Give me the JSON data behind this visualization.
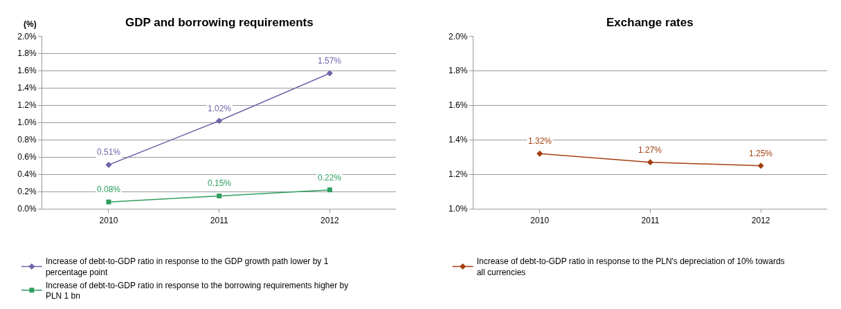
{
  "chart_data": [
    {
      "type": "line",
      "title": "GDP and borrowing requirements",
      "ylabel": "(%)",
      "categories": [
        "2010",
        "2011",
        "2012"
      ],
      "series": [
        {
          "name": "Increase of debt-to-GDP ratio in response to the GDP growth path lower by 1 percentage point",
          "color": "#7264aa",
          "values": [
            0.51,
            1.02,
            1.57
          ],
          "value_labels": [
            "0.51%",
            "1.02%",
            "1.57%"
          ],
          "marker": "diamond"
        },
        {
          "name": "Increase of debt-to-GDP ratio in response to the borrowing requirements higher by PLN 1 bn",
          "color": "#2f9e60",
          "values": [
            0.08,
            0.15,
            0.22
          ],
          "value_labels": [
            "0.08%",
            "0.15%",
            "0.22%"
          ],
          "marker": "square"
        }
      ],
      "ylim": [
        0,
        2
      ],
      "yticks": [
        {
          "value": 0,
          "label": "0.0%"
        },
        {
          "value": 0.2,
          "label": "0.2%"
        },
        {
          "value": 0.4,
          "label": "0.4%"
        },
        {
          "value": 0.6,
          "label": "0.6%"
        },
        {
          "value": 0.8,
          "label": "0.8%"
        },
        {
          "value": 1.0,
          "label": "1.0%"
        },
        {
          "value": 1.2,
          "label": "1.2%"
        },
        {
          "value": 1.4,
          "label": "1.4%"
        },
        {
          "value": 1.6,
          "label": "1.6%"
        },
        {
          "value": 1.8,
          "label": "1.8%"
        },
        {
          "value": 2.0,
          "label": "2.0%"
        }
      ],
      "grid": "y",
      "legend": "bottom",
      "line_style": "solid"
    },
    {
      "type": "line",
      "title": "Exchange rates",
      "categories": [
        "2010",
        "2011",
        "2012"
      ],
      "series": [
        {
          "name": "Increase of debt-to-GDP ratio in response to the PLN's depreciation of 10% towards all currencies",
          "color": "#a23f10",
          "values": [
            1.32,
            1.27,
            1.25
          ],
          "value_labels": [
            "1.32%",
            "1.27%",
            "1.25%"
          ],
          "marker": "diamond"
        }
      ],
      "ylim": [
        1,
        2
      ],
      "yticks": [
        {
          "value": 1.0,
          "label": "1.0%"
        },
        {
          "value": 1.2,
          "label": "1.2%"
        },
        {
          "value": 1.4,
          "label": "1.4%"
        },
        {
          "value": 1.6,
          "label": "1.6%"
        },
        {
          "value": 1.8,
          "label": "1.8%"
        },
        {
          "value": 2.0,
          "label": "2.0%"
        }
      ],
      "grid": "y",
      "legend": "bottom",
      "line_style": "solid"
    }
  ]
}
